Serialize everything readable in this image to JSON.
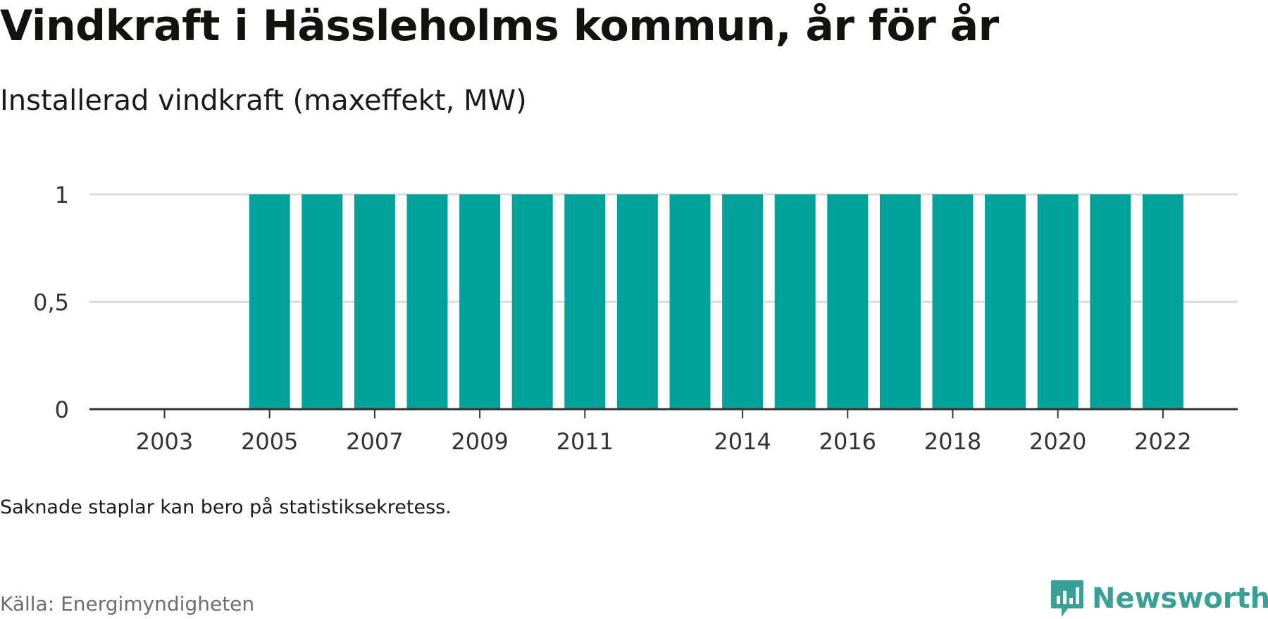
{
  "title": "Vindkraft i Hässleholms kommun, år för år",
  "subtitle": "Installerad vindkraft (maxeffekt, MW)",
  "note": "Saknade staplar kan bero på statistiksekretess.",
  "source": "Källa: Energimyndigheten",
  "brand": {
    "name": "Newsworthy",
    "icon": "newsworthy-logo-icon",
    "color": "#39a095"
  },
  "colors": {
    "bar": "#00a29a",
    "grid": "#dddddd",
    "axis": "#333333"
  },
  "chart_data": {
    "type": "bar",
    "title": "Vindkraft i Hässleholms kommun, år för år",
    "subtitle": "Installerad vindkraft (maxeffekt, MW)",
    "categories": [
      2003,
      2004,
      2005,
      2006,
      2007,
      2008,
      2009,
      2010,
      2011,
      2012,
      2013,
      2014,
      2015,
      2016,
      2017,
      2018,
      2019,
      2020,
      2021,
      2022
    ],
    "values": [
      null,
      null,
      1,
      1,
      1,
      1,
      1,
      1,
      1,
      1,
      1,
      1,
      1,
      1,
      1,
      1,
      1,
      1,
      1,
      1
    ],
    "x_tick_labels": [
      "2003",
      "2005",
      "2007",
      "2009",
      "2011",
      "2014",
      "2016",
      "2018",
      "2020",
      "2022"
    ],
    "y_ticks": [
      0,
      0.5,
      1
    ],
    "y_tick_labels": [
      "0",
      "0,5",
      "1"
    ],
    "ylim": [
      0,
      1
    ],
    "xlabel": "",
    "ylabel": "",
    "grid": true,
    "legend": "none"
  }
}
